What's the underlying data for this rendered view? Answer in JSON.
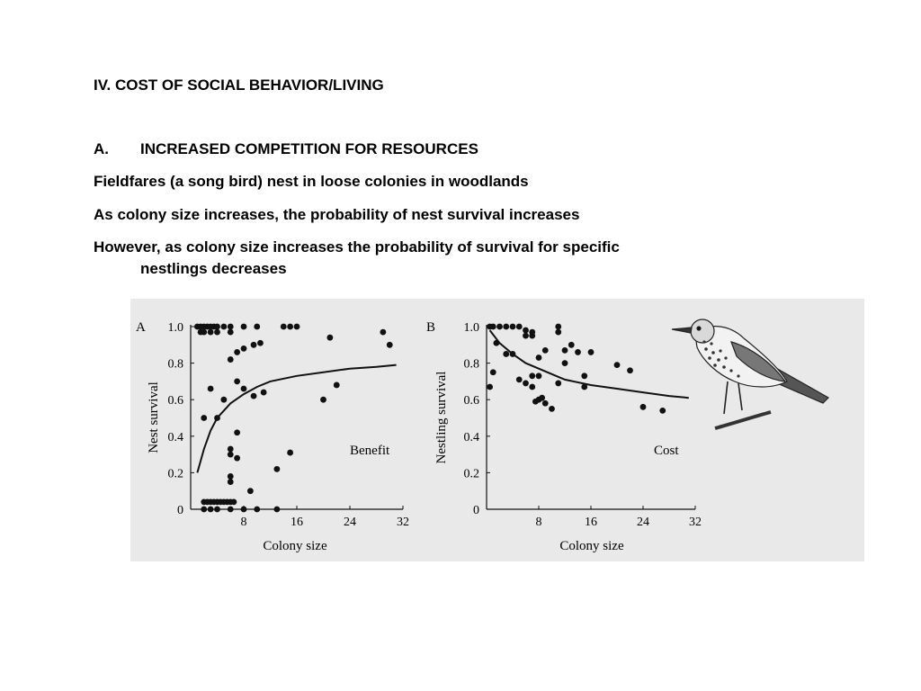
{
  "slide": {
    "heading": "IV. COST OF SOCIAL BEHAVIOR/LIVING",
    "section_letter": "A.",
    "section_title": "INCREASED COMPETITION FOR RESOURCES",
    "line1": "Fieldfares (a song bird) nest in loose colonies in woodlands",
    "line2": "As colony size increases, the probability of nest survival increases",
    "line3a": "However, as colony size increases the probability of survival for specific",
    "line3b": "nestlings decreases"
  },
  "colors": {
    "ink": "#111111",
    "figure_bg": "#e9e9e9"
  },
  "chart_data": [
    {
      "type": "scatter",
      "panel": "A",
      "xlabel": "Colony size",
      "ylabel": "Nest survival",
      "annotation": "Benefit",
      "xlim": [
        0,
        32
      ],
      "ylim": [
        0,
        1.0
      ],
      "xticks": [
        8,
        16,
        24,
        32
      ],
      "yticks": [
        "0",
        "0.2",
        "0.4",
        "0.6",
        "0.8",
        "1.0"
      ],
      "x_tick_labels": [
        "8",
        "16",
        "24",
        "32"
      ],
      "points": [
        [
          1,
          1.0
        ],
        [
          1.5,
          1.0
        ],
        [
          2,
          1.0
        ],
        [
          2.5,
          1.0
        ],
        [
          3,
          1.0
        ],
        [
          3.5,
          1.0
        ],
        [
          4,
          1.0
        ],
        [
          5,
          1.0
        ],
        [
          6,
          1.0
        ],
        [
          8,
          1.0
        ],
        [
          10,
          1.0
        ],
        [
          14,
          1.0
        ],
        [
          15,
          1.0
        ],
        [
          16,
          1.0
        ],
        [
          29,
          0.97
        ],
        [
          30,
          0.9
        ],
        [
          21,
          0.94
        ],
        [
          1.5,
          0.97
        ],
        [
          2,
          0.97
        ],
        [
          3,
          0.97
        ],
        [
          4,
          0.97
        ],
        [
          6,
          0.97
        ],
        [
          6,
          0.82
        ],
        [
          7,
          0.86
        ],
        [
          8,
          0.88
        ],
        [
          9.5,
          0.9
        ],
        [
          10.5,
          0.91
        ],
        [
          7,
          0.7
        ],
        [
          8,
          0.66
        ],
        [
          9.5,
          0.62
        ],
        [
          3,
          0.66
        ],
        [
          5,
          0.6
        ],
        [
          2,
          0.5
        ],
        [
          4,
          0.5
        ],
        [
          11,
          0.64
        ],
        [
          20,
          0.6
        ],
        [
          22,
          0.68
        ],
        [
          7,
          0.42
        ],
        [
          6,
          0.33
        ],
        [
          6,
          0.3
        ],
        [
          7,
          0.28
        ],
        [
          15,
          0.31
        ],
        [
          13,
          0.22
        ],
        [
          6,
          0.18
        ],
        [
          6,
          0.15
        ],
        [
          9,
          0.1
        ],
        [
          2,
          0.04
        ],
        [
          2.5,
          0.04
        ],
        [
          3,
          0.04
        ],
        [
          3.5,
          0.04
        ],
        [
          4,
          0.04
        ],
        [
          4.5,
          0.04
        ],
        [
          5,
          0.04
        ],
        [
          5.5,
          0.04
        ],
        [
          6,
          0.04
        ],
        [
          6.5,
          0.04
        ],
        [
          2,
          0.0
        ],
        [
          3,
          0.0
        ],
        [
          4,
          0.0
        ],
        [
          6,
          0.0
        ],
        [
          8,
          0.0
        ],
        [
          10,
          0.0
        ],
        [
          13,
          0.0
        ]
      ],
      "trend": [
        [
          1,
          0.2
        ],
        [
          2,
          0.33
        ],
        [
          3,
          0.43
        ],
        [
          4,
          0.5
        ],
        [
          6,
          0.58
        ],
        [
          8,
          0.63
        ],
        [
          10,
          0.67
        ],
        [
          12,
          0.7
        ],
        [
          16,
          0.73
        ],
        [
          20,
          0.75
        ],
        [
          24,
          0.77
        ],
        [
          28,
          0.78
        ],
        [
          31,
          0.79
        ]
      ]
    },
    {
      "type": "scatter",
      "panel": "B",
      "xlabel": "Colony size",
      "ylabel": "Nestling survival",
      "annotation": "Cost",
      "xlim": [
        0,
        32
      ],
      "ylim": [
        0,
        1.0
      ],
      "xticks": [
        8,
        16,
        24,
        32
      ],
      "yticks": [
        "0",
        "0.2",
        "0.4",
        "0.6",
        "0.8",
        "1.0"
      ],
      "x_tick_labels": [
        "8",
        "16",
        "24",
        "32"
      ],
      "points": [
        [
          0.5,
          1.0
        ],
        [
          1,
          1.0
        ],
        [
          2,
          1.0
        ],
        [
          3,
          1.0
        ],
        [
          4,
          1.0
        ],
        [
          5,
          1.0
        ],
        [
          6,
          0.98
        ],
        [
          7,
          0.97
        ],
        [
          6,
          0.95
        ],
        [
          7,
          0.95
        ],
        [
          11,
          1.0
        ],
        [
          11,
          0.97
        ],
        [
          1.5,
          0.91
        ],
        [
          3,
          0.85
        ],
        [
          4,
          0.85
        ],
        [
          8,
          0.83
        ],
        [
          9,
          0.87
        ],
        [
          12,
          0.87
        ],
        [
          13,
          0.9
        ],
        [
          14,
          0.86
        ],
        [
          16,
          0.86
        ],
        [
          20,
          0.79
        ],
        [
          22,
          0.76
        ],
        [
          12,
          0.8
        ],
        [
          1,
          0.75
        ],
        [
          5,
          0.71
        ],
        [
          7,
          0.73
        ],
        [
          8,
          0.73
        ],
        [
          6,
          0.69
        ],
        [
          7,
          0.67
        ],
        [
          8,
          0.6
        ],
        [
          8.5,
          0.61
        ],
        [
          11,
          0.69
        ],
        [
          15,
          0.73
        ],
        [
          15,
          0.67
        ],
        [
          10,
          0.55
        ],
        [
          7.5,
          0.59
        ],
        [
          24,
          0.56
        ],
        [
          27,
          0.54
        ],
        [
          0.5,
          0.67
        ],
        [
          9,
          0.58
        ]
      ],
      "trend": [
        [
          0.5,
          0.98
        ],
        [
          2,
          0.91
        ],
        [
          4,
          0.85
        ],
        [
          6,
          0.8
        ],
        [
          8,
          0.77
        ],
        [
          10,
          0.74
        ],
        [
          12,
          0.71
        ],
        [
          16,
          0.68
        ],
        [
          20,
          0.66
        ],
        [
          24,
          0.64
        ],
        [
          28,
          0.62
        ],
        [
          31,
          0.61
        ]
      ]
    }
  ]
}
